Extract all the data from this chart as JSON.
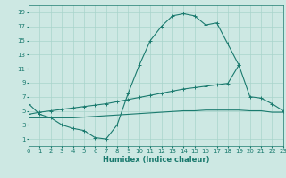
{
  "xlabel": "Humidex (Indice chaleur)",
  "bg_color": "#cde8e3",
  "grid_color": "#a8d4cc",
  "line_color": "#1a7a6e",
  "xlim": [
    0,
    23
  ],
  "ylim": [
    0,
    20
  ],
  "xticks": [
    0,
    1,
    2,
    3,
    4,
    5,
    6,
    7,
    8,
    9,
    10,
    11,
    12,
    13,
    14,
    15,
    16,
    17,
    18,
    19,
    20,
    21,
    22,
    23
  ],
  "yticks": [
    1,
    3,
    5,
    7,
    9,
    11,
    13,
    15,
    17,
    19
  ],
  "curve1_x": [
    0,
    1,
    2,
    3,
    4,
    5,
    6,
    7,
    8,
    9,
    10,
    11,
    12,
    13,
    14,
    15,
    16,
    17,
    18,
    19
  ],
  "curve1_y": [
    6.0,
    4.5,
    4.0,
    3.0,
    2.5,
    2.2,
    1.2,
    1.0,
    3.0,
    7.5,
    11.5,
    15.0,
    17.0,
    18.5,
    18.8,
    18.5,
    17.2,
    17.5,
    14.5,
    11.5
  ],
  "curve2_x": [
    0,
    1,
    2,
    3,
    4,
    5,
    6,
    7,
    8,
    9,
    10,
    11,
    12,
    13,
    14,
    15,
    16,
    17,
    18,
    19,
    20,
    21,
    22,
    23
  ],
  "curve2_y": [
    4.5,
    4.8,
    5.0,
    5.2,
    5.4,
    5.6,
    5.8,
    6.0,
    6.3,
    6.6,
    6.9,
    7.2,
    7.5,
    7.8,
    8.1,
    8.3,
    8.5,
    8.7,
    8.9,
    11.5,
    7.0,
    6.8,
    6.0,
    5.0
  ],
  "curve3_x": [
    0,
    1,
    2,
    3,
    4,
    5,
    6,
    7,
    8,
    9,
    10,
    11,
    12,
    13,
    14,
    15,
    16,
    17,
    18,
    19,
    20,
    21,
    22,
    23
  ],
  "curve3_y": [
    4.0,
    4.0,
    4.0,
    4.0,
    4.0,
    4.1,
    4.2,
    4.3,
    4.4,
    4.5,
    4.6,
    4.7,
    4.8,
    4.9,
    5.0,
    5.0,
    5.1,
    5.1,
    5.1,
    5.1,
    5.0,
    5.0,
    4.8,
    4.8
  ]
}
